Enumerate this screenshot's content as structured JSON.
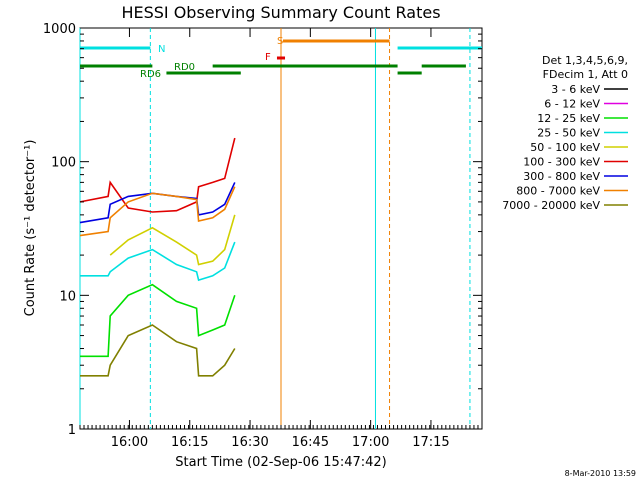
{
  "chart_data": {
    "type": "line",
    "title": "HESSI Observing Summary Count Rates",
    "xlabel": "Start Time (02-Sep-06 15:47:42)",
    "ylabel": "Count Rate (s⁻¹ detector⁻¹)",
    "yscale": "log",
    "ylim": [
      1,
      1000
    ],
    "xlim_minutes": [
      0,
      100
    ],
    "x_ticks": [
      "16:00",
      "16:15",
      "16:30",
      "16:45",
      "17:00",
      "17:15"
    ],
    "y_ticks": [
      "1",
      "10",
      "100",
      "1000"
    ],
    "x_sample_minutes": [
      0,
      7,
      7.5,
      12,
      18,
      24,
      29,
      29.5,
      33,
      36,
      38.5,
      52,
      60,
      64,
      67,
      70,
      72,
      73,
      76,
      80,
      84,
      88,
      92,
      96,
      100
    ],
    "legend": {
      "placement": "top-right",
      "header": [
        "Det 1,3,4,5,6,9,",
        "FDecim 1, Att 0"
      ]
    },
    "series": [
      {
        "name": "3 - 6 keV",
        "color": "#000000",
        "values": [
          null,
          null,
          null,
          null,
          null,
          null,
          null,
          null,
          null,
          null,
          null,
          null,
          null,
          null,
          null,
          null,
          null,
          null,
          null,
          null,
          null,
          null,
          null,
          null,
          null
        ]
      },
      {
        "name": "6 - 12 keV",
        "color": "#e000e0",
        "values": [
          null,
          null,
          null,
          null,
          null,
          null,
          null,
          null,
          null,
          null,
          null,
          null,
          null,
          null,
          null,
          null,
          null,
          null,
          null,
          null,
          null,
          null,
          null,
          null,
          null
        ]
      },
      {
        "name": "12 - 25 keV",
        "color": "#00e000",
        "values": [
          3.5,
          3.5,
          7,
          10,
          12,
          9,
          8,
          5,
          5.5,
          6,
          10,
          null,
          null,
          null,
          null,
          null,
          null,
          null,
          null,
          null,
          null,
          null,
          null,
          null,
          null
        ]
      },
      {
        "name": "25 - 50 keV",
        "color": "#00e0e0",
        "values": [
          14,
          14,
          15,
          19,
          22,
          17,
          15,
          13,
          14,
          16,
          25,
          null,
          null,
          null,
          null,
          null,
          null,
          null,
          null,
          null,
          null,
          null,
          null,
          null,
          null
        ]
      },
      {
        "name": "50 - 100 keV",
        "color": "#d0d000",
        "values": [
          null,
          null,
          20,
          26,
          32,
          25,
          20,
          17,
          18,
          22,
          40,
          null,
          null,
          null,
          null,
          null,
          null,
          null,
          null,
          null,
          null,
          null,
          null,
          null,
          null
        ]
      },
      {
        "name": "100 - 300 keV",
        "color": "#e00000",
        "values": [
          50,
          55,
          70,
          45,
          42,
          43,
          50,
          65,
          70,
          75,
          150,
          null,
          null,
          null,
          null,
          null,
          null,
          null,
          null,
          null,
          null,
          null,
          null,
          null,
          null
        ]
      },
      {
        "name": "300 - 800 keV",
        "color": "#0000e0",
        "values": [
          35,
          38,
          48,
          55,
          58,
          55,
          53,
          40,
          42,
          48,
          70,
          null,
          null,
          null,
          null,
          null,
          null,
          null,
          null,
          null,
          null,
          null,
          null,
          null,
          null
        ]
      },
      {
        "name": "800 - 7000 keV",
        "color": "#f08000",
        "values": [
          28,
          30,
          38,
          50,
          58,
          55,
          52,
          36,
          38,
          44,
          65,
          null,
          null,
          null,
          null,
          null,
          null,
          null,
          null,
          null,
          null,
          null,
          null,
          null,
          null
        ]
      },
      {
        "name": "7000 - 20000 keV",
        "color": "#808000",
        "values": [
          2.5,
          2.5,
          3,
          5,
          6,
          4.5,
          4,
          2.5,
          2.5,
          3,
          4,
          null,
          null,
          null,
          null,
          null,
          null,
          null,
          null,
          null,
          null,
          null,
          null,
          null,
          null
        ]
      }
    ],
    "flags": [
      {
        "label": "N",
        "color": "#00e0e0"
      },
      {
        "label": "S",
        "color": "#f08000"
      },
      {
        "label": "F",
        "color": "#e00000"
      },
      {
        "label": "RD0",
        "color": "#008000"
      },
      {
        "label": "RD6",
        "color": "#008000"
      }
    ],
    "footer": "8-Mar-2010 13:59"
  }
}
